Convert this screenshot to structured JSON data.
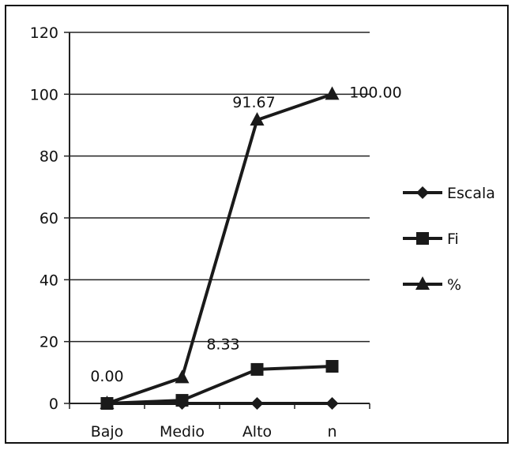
{
  "chart_data": {
    "type": "line",
    "categories": [
      "Bajo",
      "Medio",
      "Alto",
      "n"
    ],
    "ylim": [
      0,
      120
    ],
    "yticks": [
      0,
      20,
      40,
      60,
      80,
      100,
      120
    ],
    "grid": true,
    "legend_position": "right",
    "series": [
      {
        "name": "Escala",
        "marker": "diamond",
        "values": [
          0,
          0,
          0,
          0
        ]
      },
      {
        "name": "Fi",
        "marker": "square",
        "values": [
          0,
          1,
          11,
          12
        ]
      },
      {
        "name": "%",
        "marker": "triangle",
        "values": [
          0,
          8.33,
          91.67,
          100.0
        ]
      }
    ],
    "data_labels": [
      {
        "series": 2,
        "index": 0,
        "text": "0.00"
      },
      {
        "series": 2,
        "index": 1,
        "text": "8.33"
      },
      {
        "series": 2,
        "index": 2,
        "text": "91.67"
      },
      {
        "series": 2,
        "index": 3,
        "text": "100.00"
      }
    ],
    "colors": {
      "line": "#1a1a1a",
      "grid": "#222222"
    }
  }
}
